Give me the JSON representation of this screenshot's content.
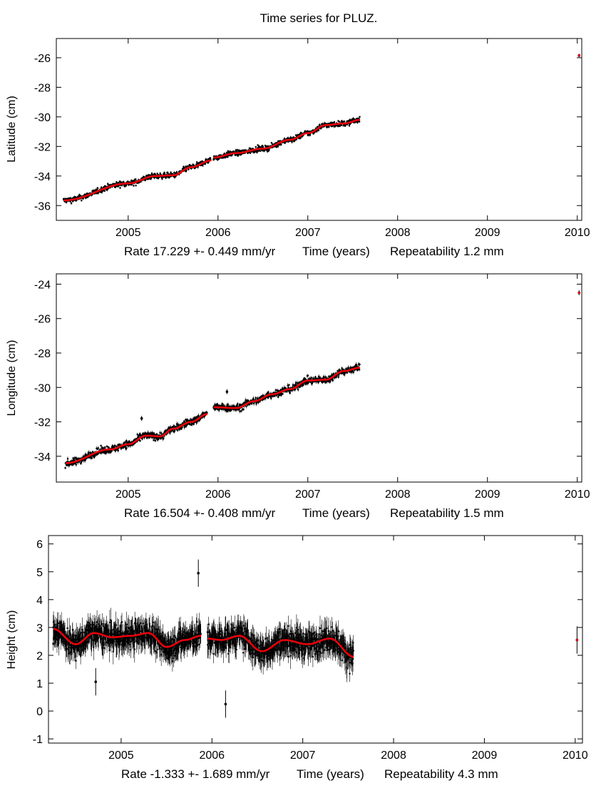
{
  "title": "Time series for PLUZ.",
  "colors": {
    "data": "#000000",
    "model": "#e8000b",
    "axis": "#000000"
  },
  "chart_data": [
    {
      "type": "scatter",
      "name": "latitude",
      "ylabel": "Latitude (cm)",
      "xlabel": "Time (years)",
      "rate_text": "Rate 17.229 +- 0.449 mm/yr",
      "repeat_text": "Repeatability 1.2 mm",
      "xlim": [
        2004.2,
        2010.05
      ],
      "ylim": [
        -37,
        -24.7
      ],
      "xticks": [
        2005,
        2006,
        2007,
        2008,
        2009,
        2010
      ],
      "yticks": [
        -26,
        -28,
        -30,
        -32,
        -34,
        -36
      ],
      "segments": [
        {
          "x": [
            2004.28,
            2005.0,
            2005.3,
            2005.5,
            2005.7,
            2005.92
          ],
          "y": [
            -35.65,
            -34.5,
            -34.0,
            -33.95,
            -33.4,
            -32.95
          ]
        },
        {
          "x": [
            2005.95,
            2006.2,
            2006.5,
            2006.8,
            2007.0,
            2007.2,
            2007.4,
            2007.58
          ],
          "y": [
            -32.75,
            -32.45,
            -32.15,
            -31.55,
            -31.1,
            -30.55,
            -30.45,
            -30.2
          ]
        }
      ],
      "noise": 0.18,
      "outliers": [
        {
          "x": 2010.02,
          "y": -25.85
        }
      ],
      "error_bar": 0.08
    },
    {
      "type": "scatter",
      "name": "longitude",
      "ylabel": "Longitude (cm)",
      "xlabel": "Time (years)",
      "rate_text": "Rate 16.504 +- 0.408 mm/yr",
      "repeat_text": "Repeatability 1.5 mm",
      "xlim": [
        2004.2,
        2010.05
      ],
      "ylim": [
        -35.5,
        -23.4
      ],
      "xticks": [
        2005,
        2006,
        2007,
        2008,
        2009,
        2010
      ],
      "yticks": [
        -24,
        -26,
        -28,
        -30,
        -32,
        -34
      ],
      "segments": [
        {
          "x": [
            2004.3,
            2004.8,
            2005.0,
            2005.2,
            2005.35,
            2005.5,
            2005.7,
            2005.88
          ],
          "y": [
            -34.4,
            -33.6,
            -33.3,
            -32.8,
            -32.85,
            -32.4,
            -32.0,
            -31.55
          ]
        },
        {
          "x": [
            2005.95,
            2006.2,
            2006.4,
            2006.6,
            2006.8,
            2007.0,
            2007.2,
            2007.4,
            2007.58
          ],
          "y": [
            -31.15,
            -31.2,
            -30.8,
            -30.4,
            -30.1,
            -29.6,
            -29.55,
            -29.05,
            -28.85
          ]
        }
      ],
      "noise": 0.2,
      "outliers": [
        {
          "x": 2010.02,
          "y": -24.5
        },
        {
          "x": 2006.1,
          "y": -30.25
        },
        {
          "x": 2005.15,
          "y": -31.8
        }
      ],
      "error_bar": 0.1
    },
    {
      "type": "scatter",
      "name": "height",
      "ylabel": "Height (cm)",
      "xlabel": "Time (years)",
      "rate_text": "Rate -1.333 +- 1.689 mm/yr",
      "repeat_text": "Repeatability 4.3 mm",
      "xlim": [
        2004.2,
        2010.08
      ],
      "ylim": [
        -1.15,
        6.3
      ],
      "xticks": [
        2005,
        2006,
        2007,
        2008,
        2009,
        2010
      ],
      "yticks": [
        6,
        5,
        4,
        3,
        2,
        1,
        0,
        -1
      ],
      "segments": [
        {
          "x": [
            2004.25,
            2004.5,
            2004.7,
            2004.9,
            2005.1,
            2005.3,
            2005.5,
            2005.7,
            2005.88
          ],
          "y": [
            2.95,
            2.4,
            2.8,
            2.65,
            2.7,
            2.8,
            2.3,
            2.55,
            2.7
          ]
        },
        {
          "x": [
            2005.95,
            2006.1,
            2006.3,
            2006.55,
            2006.8,
            2007.05,
            2007.3,
            2007.56
          ],
          "y": [
            2.6,
            2.55,
            2.7,
            2.15,
            2.55,
            2.4,
            2.6,
            1.95
          ]
        }
      ],
      "noise": 0.45,
      "outliers": [
        {
          "x": 2010.02,
          "y": 2.55
        },
        {
          "x": 2006.15,
          "y": 0.25
        },
        {
          "x": 2005.85,
          "y": 4.95
        },
        {
          "x": 2004.72,
          "y": 1.05
        }
      ],
      "error_bar": 0.35
    }
  ]
}
